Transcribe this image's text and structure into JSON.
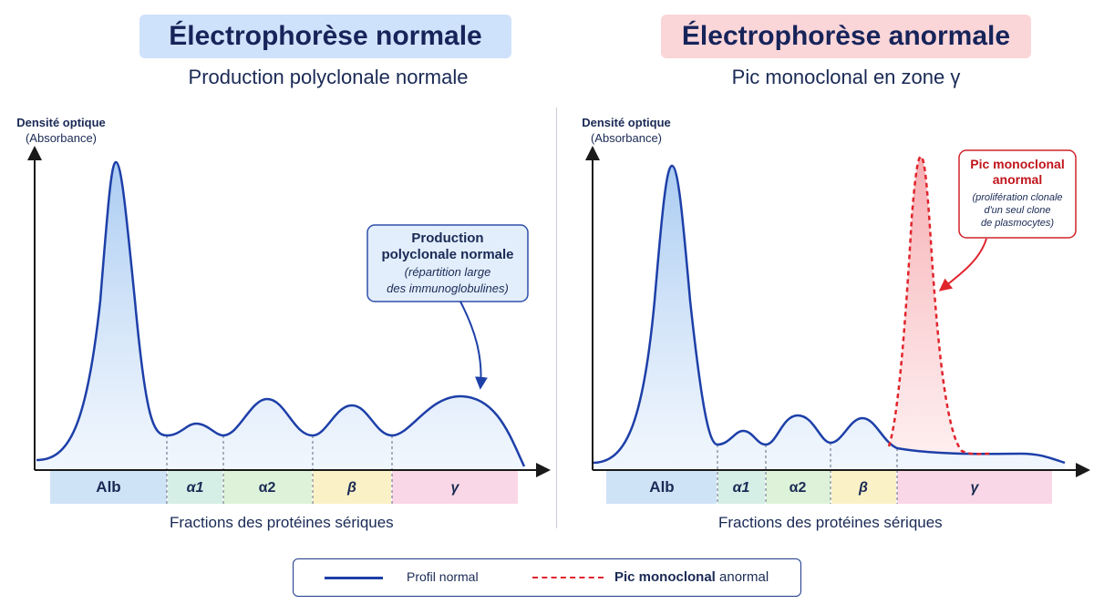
{
  "left": {
    "title": "Électrophorèse normale",
    "subtitle": "Production polyclonale normale",
    "ylabel_line1": "Densité optique",
    "ylabel_line2": "(Absorbance)",
    "xlabel": "Fractions des protéines sériques",
    "fractions": [
      "Alb",
      "α1",
      "α2",
      "β",
      "γ"
    ],
    "callout": {
      "title_line1": "Production",
      "title_line2": "polyclonale normale",
      "detail_line1": "(répartition large",
      "detail_line2": "des immunoglobulines)"
    }
  },
  "right": {
    "title": "Électrophorèse anormale",
    "subtitle": "Pic monoclonal en zone γ",
    "ylabel_line1": "Densité optique",
    "ylabel_line2": "(Absorbance)",
    "xlabel": "Fractions des protéines sériques",
    "fractions": [
      "Alb",
      "α1",
      "α2",
      "β",
      "γ"
    ],
    "callout": {
      "title_line1": "Pic monoclonal",
      "title_line2": "anormal",
      "detail_line1": "(prolifération clonale",
      "detail_line2": "d'un seul clone",
      "detail_line3": "de plasmocytes)"
    }
  },
  "legend": {
    "normal": "Profil normal",
    "mono_bold": "Pic monoclonal",
    "mono_rest": " anormal"
  },
  "colors": {
    "curve": "#1d3fa8",
    "mono": "#e0242c",
    "alb": "#cfe3f7",
    "alpha1": "#d6efe6",
    "alpha2": "#def2d9",
    "beta": "#fbf1c6",
    "gamma": "#fad7e6"
  }
}
